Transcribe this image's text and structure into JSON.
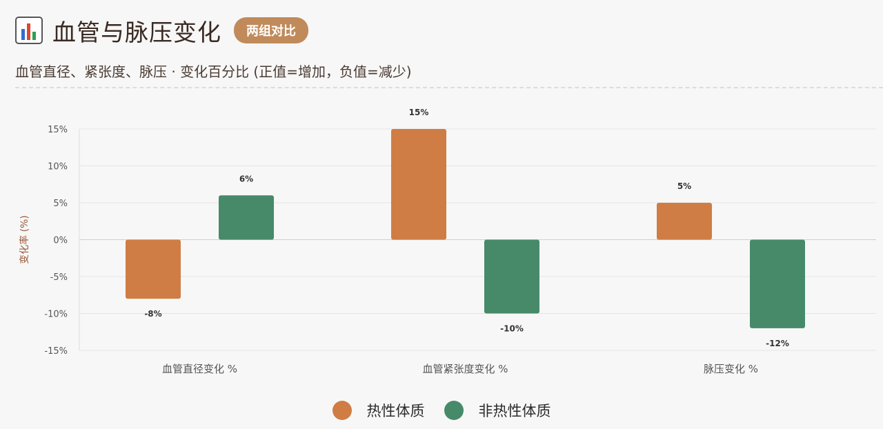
{
  "header": {
    "icon": "bar-chart-icon",
    "title": "血管与脉压变化",
    "badge": "两组对比",
    "subtitle": "血管直径、紧张度、脉压 · 变化百分比 (正值=增加，负值=减少)"
  },
  "colors": {
    "hot": "#cf7d45",
    "nonhot": "#468a6a",
    "badge": "#c08a5a"
  },
  "chart_data": {
    "type": "bar",
    "ylabel": "变化率 (%)",
    "ylim": [
      -15,
      15
    ],
    "yticks": [
      15,
      10,
      5,
      0,
      -5,
      -10,
      -15
    ],
    "ytick_labels": [
      "15%",
      "10%",
      "5%",
      "0%",
      "-5%",
      "-10%",
      "-15%"
    ],
    "categories": [
      "血管直径变化 %",
      "血管紧张度变化 %",
      "脉压变化 %"
    ],
    "series": [
      {
        "name": "热性体质",
        "values": [
          -8,
          15,
          5
        ],
        "labels": [
          "-8%",
          "15%",
          "5%"
        ]
      },
      {
        "name": "非热性体质",
        "values": [
          6,
          -10,
          -12
        ],
        "labels": [
          "6%",
          "-10%",
          "-12%"
        ]
      }
    ],
    "legend": "bottom-center",
    "grid": true
  }
}
